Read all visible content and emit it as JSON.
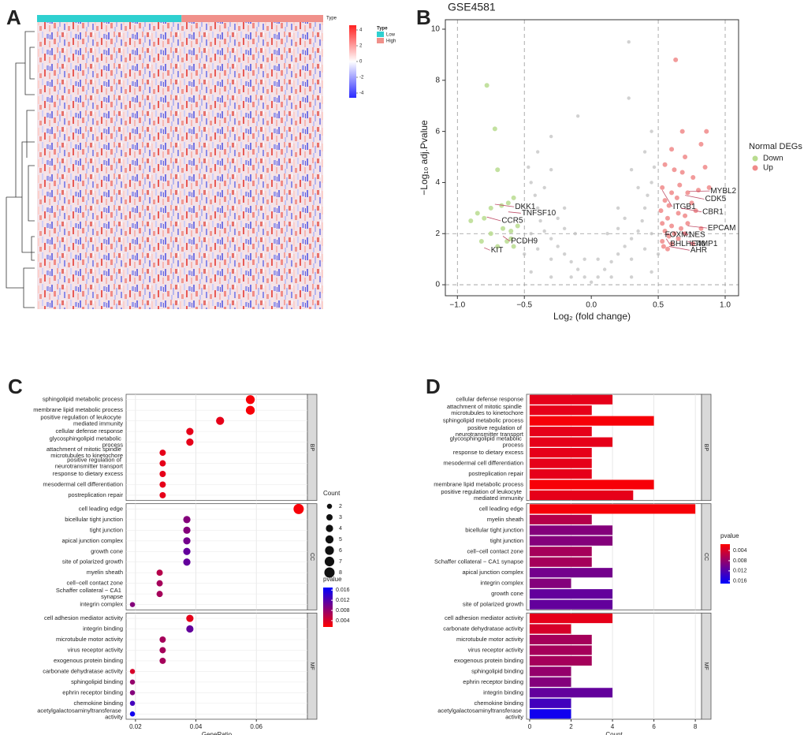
{
  "chart_data": [
    {
      "type": "heatmap",
      "label": "A",
      "annotation_label": "Type",
      "legend_title": "Type",
      "groups": [
        {
          "name": "Low",
          "color": "#2fd0d0"
        },
        {
          "name": "High",
          "color": "#f0908a"
        }
      ],
      "colorbar": {
        "lim": [
          -4.6,
          4.6
        ],
        "ticks": [
          4,
          2,
          0,
          -2,
          -4
        ],
        "colors": [
          "#2a2aff",
          "#ffffff",
          "#ff2020"
        ]
      }
    },
    {
      "type": "scatter",
      "label": "B",
      "title": "GSE4581",
      "xlabel": "Log₂ (fold change)",
      "ylabel": "−Log₁₀ adj.Pvalue",
      "legend_title": "Normal DEGs",
      "xlim": [
        -1.09,
        1.1
      ],
      "ylim": [
        -0.43,
        10.37
      ],
      "xticks": [
        {
          "value": -1,
          "label": "−1.0"
        },
        {
          "value": -0.5,
          "label": "−0.5"
        },
        {
          "value": 0,
          "label": "0.0"
        },
        {
          "value": 0.5,
          "label": "0.5"
        },
        {
          "value": 1,
          "label": "1.0"
        }
      ],
      "yticks": [
        0,
        2,
        4,
        6,
        8,
        10
      ],
      "vlines": [
        -1,
        -0.5,
        0.5,
        1
      ],
      "hlines": [
        0,
        2
      ],
      "series": [
        {
          "name": "Down",
          "color": "#b9dc8f",
          "x": [
            -0.78,
            -0.72,
            -0.7,
            -0.62,
            -0.58,
            -0.67,
            -0.75,
            -0.85,
            -0.9,
            -0.8,
            -0.66,
            -0.6,
            -0.55,
            -0.75,
            -0.82,
            -0.63,
            -0.7,
            -0.6,
            -0.58
          ],
          "values": [
            7.8,
            6.1,
            4.5,
            3.2,
            3.4,
            3.1,
            3.0,
            2.8,
            2.5,
            2.6,
            2.2,
            2.1,
            2.3,
            2.0,
            1.7,
            1.7,
            1.5,
            1.8,
            1.5
          ]
        },
        {
          "name": "Up",
          "color": "#f08a8a",
          "x": [
            0.63,
            0.68,
            0.86,
            0.6,
            0.7,
            0.82,
            0.55,
            0.62,
            0.68,
            0.76,
            0.85,
            0.53,
            0.6,
            0.66,
            0.72,
            0.8,
            0.88,
            0.55,
            0.58,
            0.64,
            0.75,
            0.52,
            0.57,
            0.65,
            0.7,
            0.78,
            0.53,
            0.6,
            0.67,
            0.72,
            0.82,
            0.55,
            0.62,
            0.7,
            0.53,
            0.58,
            0.6,
            0.65,
            0.76,
            0.54,
            0.57
          ],
          "values": [
            8.8,
            6.0,
            6.0,
            5.3,
            5.0,
            5.5,
            4.7,
            4.5,
            4.4,
            4.2,
            4.6,
            3.8,
            3.6,
            3.9,
            3.6,
            3.7,
            3.8,
            3.3,
            3.1,
            3.4,
            3.2,
            2.9,
            2.6,
            2.8,
            2.7,
            2.9,
            2.4,
            2.3,
            2.2,
            2.4,
            2.2,
            2.1,
            2.0,
            2.0,
            1.7,
            1.9,
            1.6,
            1.8,
            1.6,
            1.5,
            1.4
          ]
        },
        {
          "color": "#bdbdbd",
          "x": [
            0,
            0.05,
            -0.05,
            0.1,
            -0.1,
            0.15,
            -0.15,
            0.2,
            -0.2,
            0.25,
            -0.25,
            0.3,
            -0.3,
            0.35,
            -0.35,
            0.38,
            -0.38,
            0.4,
            -0.4,
            0.42,
            -0.42,
            0.45,
            -0.45,
            0.47,
            -0.47,
            0.4,
            -0.4,
            0.3,
            -0.3,
            0.2,
            -0.2,
            0.12,
            -0.12,
            0.3,
            -0.3,
            0.4,
            -0.4,
            0.45,
            -0.45,
            0.35,
            -0.35,
            0.25,
            -0.25,
            0.5,
            -0.5,
            0.45,
            -0.1,
            0.28,
            0.28,
            -0.3,
            0.05,
            -0.05,
            0.15,
            -0.15,
            0.3,
            -0.3,
            0.45,
            -0.45,
            0.2,
            -0.2
          ],
          "values": [
            0.1,
            0.3,
            0.3,
            0.6,
            0.6,
            0.9,
            0.9,
            1.2,
            1.2,
            1.5,
            1.5,
            1.8,
            1.8,
            2.1,
            2.1,
            2.5,
            2.5,
            3.0,
            3.0,
            3.5,
            3.5,
            4.0,
            4.0,
            4.6,
            4.6,
            5.2,
            5.2,
            4.5,
            4.5,
            3.0,
            3.0,
            2.0,
            2.0,
            1.0,
            1.0,
            1.4,
            1.4,
            2.0,
            2.0,
            3.8,
            3.8,
            2.6,
            2.6,
            1.2,
            1.2,
            6.0,
            6.6,
            9.5,
            7.3,
            5.8,
            1.0,
            1.0,
            0.3,
            0.3,
            0.3,
            0.3,
            0.5,
            0.5,
            2.2,
            2.2
          ]
        }
      ],
      "annotations": [
        {
          "text": "DKK1",
          "x": -0.57,
          "y": 3.05,
          "point": [
            -0.72,
            3.15
          ]
        },
        {
          "text": "TNFSF10",
          "x": -0.52,
          "y": 2.8,
          "point": [
            -0.62,
            2.85
          ]
        },
        {
          "text": "CCR5",
          "x": -0.67,
          "y": 2.5,
          "point": [
            -0.78,
            2.65
          ]
        },
        {
          "text": "PCDH9",
          "x": -0.6,
          "y": 1.7,
          "point": [
            -0.66,
            1.9
          ]
        },
        {
          "text": "KIT",
          "x": -0.75,
          "y": 1.35,
          "point": [
            -0.8,
            1.45
          ]
        },
        {
          "text": "ITGB1",
          "x": 0.61,
          "y": 3.05,
          "point": [
            0.53,
            3.7
          ]
        },
        {
          "text": "MYBL2",
          "x": 0.89,
          "y": 3.67,
          "point": [
            0.73,
            3.65
          ]
        },
        {
          "text": "CDK5",
          "x": 0.85,
          "y": 3.35,
          "point": [
            0.7,
            3.5
          ]
        },
        {
          "text": "CBR1",
          "x": 0.83,
          "y": 2.85,
          "point": [
            0.67,
            3.0
          ]
        },
        {
          "text": "EPCAM",
          "x": 0.87,
          "y": 2.22,
          "point": [
            0.72,
            2.3
          ]
        },
        {
          "text": "FOXM1",
          "x": 0.55,
          "y": 1.95,
          "point": [
            0.58,
            2.0
          ]
        },
        {
          "text": "NES",
          "x": 0.73,
          "y": 1.95,
          "point": [
            0.68,
            2.05
          ]
        },
        {
          "text": "BHLHE40",
          "x": 0.59,
          "y": 1.6,
          "point": [
            0.56,
            1.8
          ]
        },
        {
          "text": "TIMP1",
          "x": 0.77,
          "y": 1.6,
          "point": [
            0.72,
            1.7
          ]
        },
        {
          "text": "AHR",
          "x": 0.74,
          "y": 1.35,
          "point": [
            0.58,
            1.5
          ]
        }
      ]
    },
    {
      "type": "dot",
      "label": "C",
      "xlabel": "GeneRatio",
      "xlim": [
        0.0169,
        0.0769
      ],
      "xticks": [
        0.02,
        0.04,
        0.06
      ],
      "grid": true,
      "color_scale": {
        "title": "pvalue",
        "low": "#ff0000",
        "high": "#0000ff",
        "lim": [
          0.0015,
          0.017
        ],
        "ticks": [
          0.004,
          0.008,
          0.012,
          0.016
        ]
      },
      "size_legend": {
        "title": "Count",
        "values": [
          2,
          3,
          4,
          5,
          6,
          7,
          8
        ]
      },
      "facets": [
        {
          "name": "BP",
          "categories": [
            "sphingolipid metabolic process",
            "membrane lipid metabolic process",
            "positive regulation of leukocyte mediated immunity",
            "cellular defense response",
            "glycosphingolipid metabolic process",
            "attachment of mitotic spindle microtubules to kinetochore",
            "positive regulation of neurotransmitter transport",
            "response to dietary excess",
            "mesodermal cell differentiation",
            "postreplication repair"
          ],
          "values": [
            0.058,
            0.058,
            0.048,
            0.038,
            0.038,
            0.029,
            0.029,
            0.029,
            0.029,
            0.029
          ],
          "count": [
            6,
            6,
            5,
            4,
            4,
            3,
            3,
            3,
            3,
            3
          ],
          "pvalue": [
            0.002,
            0.002,
            0.003,
            0.003,
            0.003,
            0.003,
            0.003,
            0.003,
            0.003,
            0.003
          ]
        },
        {
          "name": "CC",
          "categories": [
            "cell leading edge",
            "bicellular tight junction",
            "tight junction",
            "apical junction complex",
            "growth cone",
            "site of polarized growth",
            "myelin sheath",
            "cell−cell contact zone",
            "Schaffer collateral − CA1 synapse",
            "integrin complex"
          ],
          "values": [
            0.074,
            0.037,
            0.037,
            0.037,
            0.037,
            0.037,
            0.028,
            0.028,
            0.028,
            0.019
          ],
          "count": [
            8,
            4,
            4,
            4,
            4,
            4,
            3,
            3,
            3,
            2
          ],
          "pvalue": [
            0.002,
            0.009,
            0.009,
            0.01,
            0.011,
            0.011,
            0.006,
            0.007,
            0.007,
            0.009
          ]
        },
        {
          "name": "MF",
          "categories": [
            "cell adhesion mediator activity",
            "integrin binding",
            "microtubule motor activity",
            "virus receptor activity",
            "exogenous protein binding",
            "carbonate dehydratase activity",
            "sphingolipid binding",
            "ephrin receptor binding",
            "chemokine binding",
            "acetylgalactosaminyltransferase activity"
          ],
          "values": [
            0.038,
            0.038,
            0.029,
            0.029,
            0.029,
            0.019,
            0.019,
            0.019,
            0.019,
            0.019
          ],
          "count": [
            4,
            4,
            3,
            3,
            3,
            2,
            2,
            2,
            2,
            2
          ],
          "pvalue": [
            0.003,
            0.011,
            0.007,
            0.007,
            0.007,
            0.004,
            0.008,
            0.009,
            0.013,
            0.016
          ]
        }
      ]
    },
    {
      "type": "bar",
      "label": "D",
      "xlabel": "Count",
      "xlim": [
        -0.15,
        8.3
      ],
      "xticks": [
        0,
        2,
        4,
        6,
        8
      ],
      "grid": true,
      "color_scale": {
        "title": "pvalue",
        "low": "#ff0000",
        "high": "#0000ff",
        "lim": [
          0.0015,
          0.017
        ],
        "ticks": [
          0.004,
          0.008,
          0.012,
          0.016
        ]
      },
      "facets": [
        {
          "name": "BP",
          "categories": [
            "cellular defense response",
            "attachment of mitotic spindle microtubules to kinetochore",
            "sphingolipid metabolic process",
            "positive regulation of neurotransmitter transport",
            "glycosphingolipid metabolic process",
            "response to dietary excess",
            "mesodermal cell differentiation",
            "postreplication repair",
            "membrane lipid metabolic process",
            "positive regulation of leukocyte mediated immunity"
          ],
          "values": [
            4,
            3,
            6,
            3,
            4,
            3,
            3,
            3,
            6,
            5
          ],
          "pvalue": [
            0.003,
            0.003,
            0.002,
            0.003,
            0.003,
            0.003,
            0.003,
            0.003,
            0.002,
            0.003
          ]
        },
        {
          "name": "CC",
          "categories": [
            "cell leading edge",
            "myelin sheath",
            "bicellular tight junction",
            "tight junction",
            "cell−cell contact zone",
            "Schaffer collateral − CA1 synapse",
            "apical junction complex",
            "integrin complex",
            "growth cone",
            "site of polarized growth"
          ],
          "values": [
            8,
            3,
            4,
            4,
            3,
            3,
            4,
            2,
            4,
            4
          ],
          "pvalue": [
            0.002,
            0.006,
            0.009,
            0.009,
            0.007,
            0.007,
            0.01,
            0.009,
            0.011,
            0.011
          ]
        },
        {
          "name": "MF",
          "categories": [
            "cell adhesion mediator activity",
            "carbonate dehydratase activity",
            "microtubule motor activity",
            "virus receptor activity",
            "exogenous protein binding",
            "sphingolipid binding",
            "ephrin receptor binding",
            "integrin binding",
            "chemokine binding",
            "acetylgalactosaminyltransferase activity"
          ],
          "values": [
            4,
            2,
            3,
            3,
            3,
            2,
            2,
            4,
            2,
            2
          ],
          "pvalue": [
            0.003,
            0.004,
            0.007,
            0.007,
            0.007,
            0.008,
            0.009,
            0.011,
            0.013,
            0.016
          ]
        }
      ]
    }
  ]
}
